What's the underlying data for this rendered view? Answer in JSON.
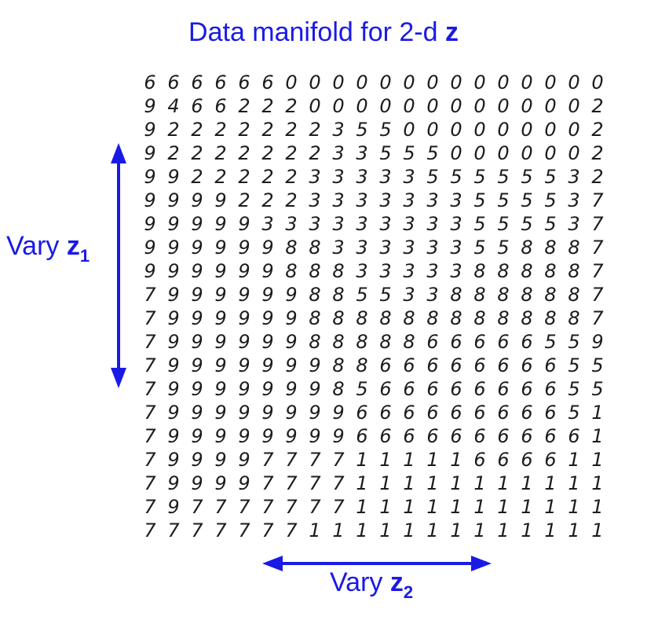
{
  "title": {
    "text": "Data manifold for 2-d ",
    "var": "z"
  },
  "axis_vertical": {
    "text": "Vary ",
    "var": "z",
    "sub": "1"
  },
  "axis_horizontal": {
    "text": "Vary ",
    "var": "z",
    "sub": "2"
  },
  "colors": {
    "accent": "#1a1ae6",
    "digit": "#1c1c1c"
  },
  "digit_grid": [
    "66666600000000000000",
    "94662220000000000002",
    "92222222355000000002",
    "92222222335550000002",
    "99222223333355555532",
    "99992223333333555537",
    "99999333333333555537",
    "99999988333333558887",
    "99999988833333888887",
    "79999998855338888887",
    "79999998888888888887",
    "79999998888866666559",
    "79999999886666666655",
    "79999999856666666655",
    "79999999966666666651",
    "79999999966666666661",
    "79999777711111666611",
    "79999777711111111111",
    "79777777711111111111",
    "77777771111111111111"
  ]
}
